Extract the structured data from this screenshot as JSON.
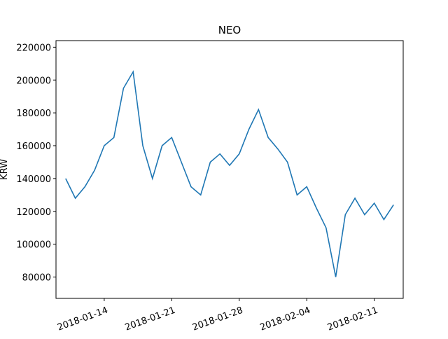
{
  "chart_data": {
    "type": "line",
    "title": "NEO",
    "ylabel": "KRW",
    "x": [
      "2018-01-10",
      "2018-01-11",
      "2018-01-12",
      "2018-01-13",
      "2018-01-14",
      "2018-01-15",
      "2018-01-16",
      "2018-01-17",
      "2018-01-18",
      "2018-01-19",
      "2018-01-20",
      "2018-01-21",
      "2018-01-22",
      "2018-01-23",
      "2018-01-24",
      "2018-01-25",
      "2018-01-26",
      "2018-01-27",
      "2018-01-28",
      "2018-01-29",
      "2018-01-30",
      "2018-01-31",
      "2018-02-01",
      "2018-02-02",
      "2018-02-03",
      "2018-02-04",
      "2018-02-05",
      "2018-02-06",
      "2018-02-07",
      "2018-02-08",
      "2018-02-09",
      "2018-02-10",
      "2018-02-11",
      "2018-02-12",
      "2018-02-13"
    ],
    "series": [
      {
        "name": "NEO",
        "color": "#1f77b4",
        "values": [
          140000,
          128000,
          135000,
          145000,
          160000,
          165000,
          195000,
          205000,
          160000,
          140000,
          160000,
          165000,
          150000,
          135000,
          130000,
          150000,
          155000,
          148000,
          155000,
          170000,
          182000,
          165000,
          158000,
          150000,
          130000,
          135000,
          122000,
          110000,
          80000,
          118000,
          128000,
          118000,
          125000,
          115000,
          124000
        ]
      }
    ],
    "xlim": [
      "2018-01-09",
      "2018-02-14"
    ],
    "xticks": [
      "2018-01-14",
      "2018-01-21",
      "2018-01-28",
      "2018-02-04",
      "2018-02-11"
    ],
    "ylim": [
      67000,
      224000
    ],
    "yticks": [
      80000,
      100000,
      120000,
      140000,
      160000,
      180000,
      200000,
      220000
    ]
  }
}
